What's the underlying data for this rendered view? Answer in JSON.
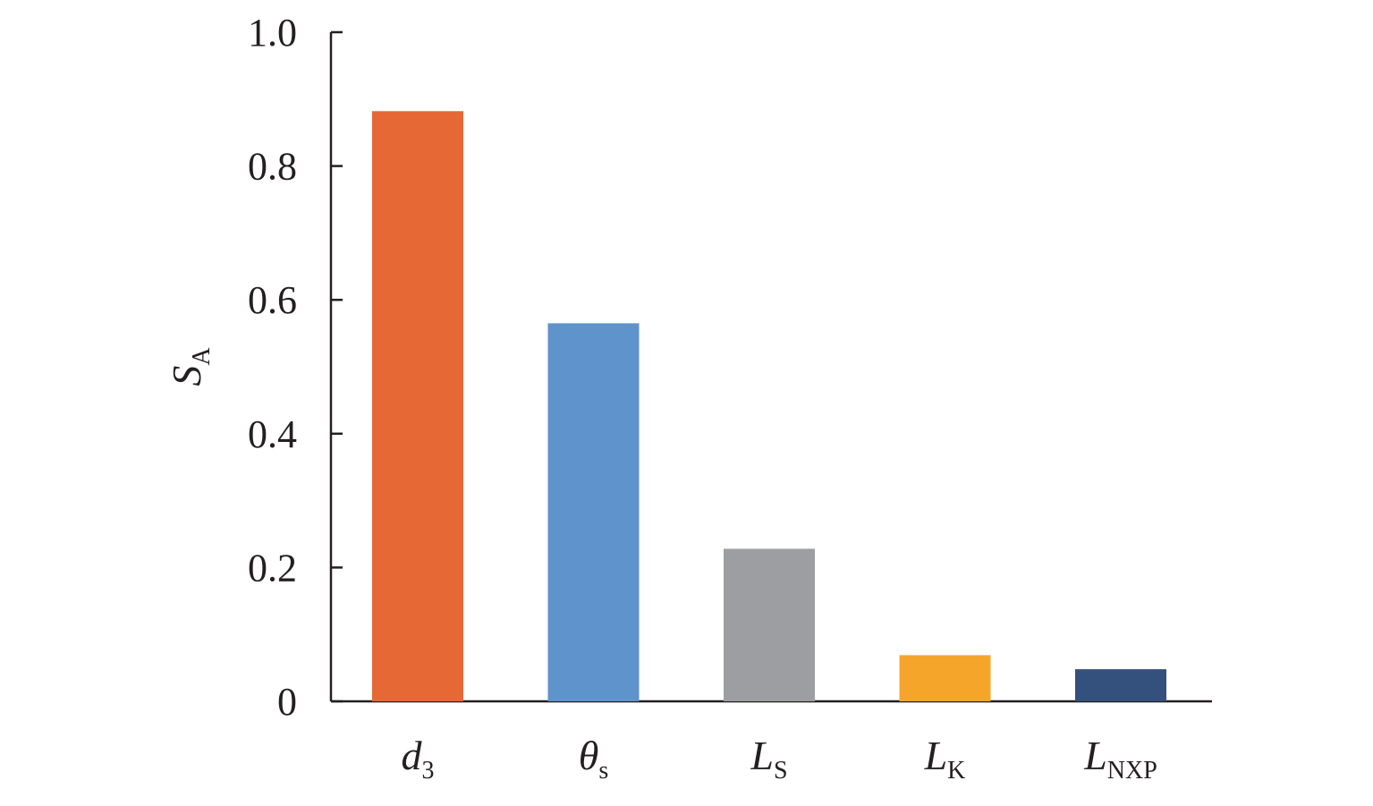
{
  "chart_data": {
    "type": "bar",
    "categories": [
      {
        "main": "d",
        "sub": "3"
      },
      {
        "main": "θ",
        "sub": "s"
      },
      {
        "main": "L",
        "sub": "S"
      },
      {
        "main": "L",
        "sub": "K"
      },
      {
        "main": "L",
        "sub": "NXP"
      }
    ],
    "values": [
      0.882,
      0.565,
      0.228,
      0.069,
      0.048
    ],
    "colors": [
      "#e56835",
      "#5f93cc",
      "#9d9ea2",
      "#f4a52a",
      "#34507d"
    ],
    "ylabel": {
      "main": "S",
      "sub": "A"
    },
    "ylim": [
      0,
      1.0
    ],
    "yticks": [
      0,
      0.2,
      0.4,
      0.6,
      0.8,
      1.0
    ],
    "ytick_labels": [
      "0",
      "0.2",
      "0.4",
      "0.6",
      "0.8",
      "1.0"
    ],
    "grid": false,
    "legend": "none"
  }
}
